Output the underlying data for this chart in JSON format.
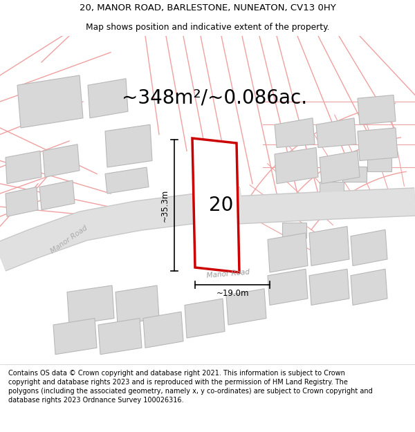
{
  "title_line1": "20, MANOR ROAD, BARLESTONE, NUNEATON, CV13 0HY",
  "title_line2": "Map shows position and indicative extent of the property.",
  "area_text": "~348m²/~0.086ac.",
  "label_number": "20",
  "dim_vertical": "~35.3m",
  "dim_horizontal": "~19.0m",
  "footer_text": "Contains OS data © Crown copyright and database right 2021. This information is subject to Crown copyright and database rights 2023 and is reproduced with the permission of HM Land Registry. The polygons (including the associated geometry, namely x, y co-ordinates) are subject to Crown copyright and database rights 2023 Ordnance Survey 100026316.",
  "map_bg": "#ffffff",
  "road_pink": "#f0a0a0",
  "road_pink_light": "#f8d0d0",
  "building_color": "#d8d8d8",
  "building_edge": "#b8b8b8",
  "road_gray_fill": "#e0e0e0",
  "road_gray_edge": "#c8c8c8",
  "property_outline_color": "#cc0000",
  "dim_line_color": "#000000",
  "title_fontsize": 9.5,
  "subtitle_fontsize": 8.8,
  "area_fontsize": 20,
  "number_fontsize": 20,
  "dim_fontsize": 8.5,
  "footer_fontsize": 7.0
}
